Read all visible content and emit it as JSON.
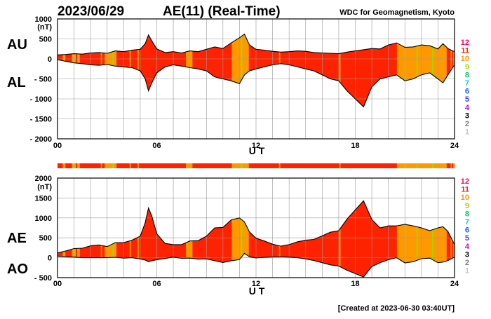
{
  "header": {
    "date": "2023/06/29",
    "title": "AE(11) (Real-Time)",
    "source": "WDC for Geomagnetism, Kyoto"
  },
  "footer": {
    "created": "[Created at 2023-06-30 03:40UT]"
  },
  "colors": {
    "c1": "#c8c8c8",
    "c2": "#808080",
    "c3": "#000000",
    "c4": "#cc00cc",
    "c5": "#4040ff",
    "c6": "#0066ff",
    "c7": "#00cccc",
    "c8": "#00cc66",
    "c9": "#99dd00",
    "c10": "#ff9900",
    "c11": "#ff2200",
    "c12": "#ff0066",
    "grid": "#999999",
    "curve": "#000000"
  },
  "chart_data": [
    {
      "type": "area",
      "id": "au_al",
      "title": "AU / AL",
      "upper_label": "AU",
      "lower_label": "AL",
      "unit": "(nT)",
      "xlabel": "U T",
      "xlim": [
        0,
        24
      ],
      "ylim": [
        -2000,
        1000
      ],
      "y_ticks": [
        1000,
        500,
        0,
        -500,
        -1000,
        -1500,
        -2000
      ],
      "y_tick_labels": [
        "1000",
        "500",
        "0",
        "- 500",
        "- 1000",
        "- 1500",
        "- 2000"
      ],
      "x_ticks": [
        0,
        6,
        12,
        18,
        24
      ],
      "x_tick_labels": [
        "00",
        "06",
        "12",
        "18",
        "24"
      ],
      "x_grid_hours": [
        1,
        2,
        3,
        4,
        5,
        6,
        7,
        8,
        9,
        10,
        11,
        12,
        13,
        14,
        15,
        16,
        17,
        18,
        19,
        20,
        21,
        22,
        23
      ],
      "series": [
        {
          "name": "AU",
          "x": [
            0,
            0.5,
            1,
            1.5,
            2,
            2.5,
            3,
            3.5,
            4,
            4.5,
            5,
            5.3,
            5.5,
            5.7,
            6,
            6.5,
            7,
            7.5,
            8,
            8.5,
            9,
            9.5,
            10,
            10.5,
            11,
            11.3,
            11.6,
            12,
            12.5,
            13,
            13.5,
            14,
            14.5,
            15,
            15.5,
            16,
            16.5,
            17,
            17.5,
            18,
            18.5,
            19,
            19.5,
            20,
            20.5,
            21,
            21.5,
            22,
            22.5,
            23,
            23.3,
            23.6,
            24
          ],
          "values": [
            100,
            110,
            130,
            120,
            150,
            160,
            140,
            200,
            180,
            220,
            240,
            380,
            600,
            450,
            250,
            160,
            180,
            150,
            200,
            180,
            240,
            300,
            260,
            400,
            530,
            620,
            350,
            240,
            220,
            190,
            170,
            180,
            200,
            190,
            160,
            150,
            140,
            130,
            170,
            200,
            230,
            260,
            250,
            350,
            400,
            290,
            300,
            350,
            330,
            250,
            380,
            260,
            180
          ]
        },
        {
          "name": "AL",
          "x": [
            0,
            0.5,
            1,
            1.5,
            2,
            2.5,
            3,
            3.5,
            4,
            4.5,
            5,
            5.3,
            5.5,
            5.7,
            6,
            6.5,
            7,
            7.5,
            8,
            8.5,
            9,
            9.5,
            10,
            10.5,
            11,
            11.3,
            11.6,
            12,
            12.5,
            13,
            13.5,
            14,
            14.5,
            15,
            15.5,
            16,
            16.5,
            17,
            17.5,
            18,
            18.5,
            19,
            19.5,
            20,
            20.5,
            21,
            21.5,
            22,
            22.5,
            23,
            23.3,
            23.6,
            24
          ],
          "values": [
            -20,
            -60,
            -100,
            -120,
            -150,
            -160,
            -140,
            -180,
            -200,
            -220,
            -300,
            -500,
            -800,
            -600,
            -350,
            -200,
            -150,
            -180,
            -220,
            -250,
            -300,
            -450,
            -500,
            -550,
            -620,
            -400,
            -300,
            -250,
            -200,
            -150,
            -120,
            -150,
            -200,
            -250,
            -300,
            -400,
            -500,
            -550,
            -800,
            -1000,
            -1200,
            -700,
            -500,
            -450,
            -400,
            -550,
            -500,
            -400,
            -350,
            -500,
            -600,
            -400,
            -150
          ]
        }
      ],
      "color_bands": [
        11,
        11,
        11,
        11,
        10,
        10,
        11,
        11,
        11,
        11,
        11,
        10,
        9,
        10,
        11,
        10,
        10,
        11,
        11,
        11,
        11,
        11,
        11,
        11,
        11,
        11,
        11,
        11,
        11,
        11,
        11,
        11,
        11,
        10,
        11,
        11,
        10,
        10,
        10,
        10,
        10,
        10,
        9,
        10,
        10,
        11,
        11,
        11,
        11,
        11,
        11,
        11,
        11,
        11,
        11,
        10,
        11,
        11,
        11,
        11,
        11,
        10,
        11,
        11,
        11,
        11,
        11,
        11,
        11,
        11,
        11,
        11,
        11,
        11,
        11,
        11,
        11,
        11,
        11,
        11,
        11,
        11,
        11,
        11,
        11,
        11,
        11,
        11,
        11,
        11,
        11,
        11,
        11,
        11,
        11,
        11,
        11,
        11,
        10,
        10,
        10,
        10,
        10,
        11,
        11,
        11,
        11,
        11,
        11,
        11,
        11,
        11,
        11,
        11,
        11,
        11,
        11,
        11,
        11,
        11,
        11,
        11,
        11,
        11,
        11,
        11,
        11,
        11,
        11,
        11,
        11,
        11,
        11,
        10,
        10,
        10,
        10,
        10,
        10,
        10,
        9,
        10,
        10,
        10,
        10,
        10,
        11,
        11,
        11,
        11,
        11,
        11,
        11,
        11,
        11,
        11,
        11,
        11,
        11,
        11,
        11,
        11,
        11,
        11,
        11,
        11,
        11,
        11,
        11,
        10,
        11,
        11,
        11,
        11,
        11,
        11,
        11,
        11,
        11,
        11,
        11,
        11,
        11,
        11,
        11,
        11,
        11,
        11,
        11,
        11,
        11,
        11,
        11,
        11,
        11,
        11,
        11,
        11,
        11,
        11,
        11,
        11,
        11,
        11,
        11,
        11,
        11,
        11,
        11,
        11,
        11,
        11,
        11,
        11,
        11,
        10,
        11,
        11,
        11,
        11,
        11,
        11,
        11,
        11,
        11,
        11,
        11,
        11,
        11,
        11,
        11,
        11,
        11,
        11,
        11,
        11,
        11,
        11,
        11,
        11,
        11,
        11,
        11,
        11,
        11,
        11,
        11,
        11,
        11,
        11,
        11,
        11,
        11,
        11,
        11,
        11,
        11,
        11,
        11,
        10,
        10,
        10,
        10,
        10,
        10,
        9,
        10,
        10,
        10,
        10,
        10,
        10,
        10,
        10,
        9,
        10,
        10,
        10,
        10,
        10,
        10,
        10,
        10,
        10,
        10,
        10,
        9,
        10,
        10,
        10,
        10,
        10,
        10,
        10,
        10,
        10,
        10,
        11,
        11,
        11,
        10,
        11,
        10
      ]
    },
    {
      "type": "area",
      "id": "ae_ao",
      "title": "AE / AO",
      "upper_label": "AE",
      "lower_label": "AO",
      "unit": "(nT)",
      "xlabel": "U T",
      "xlim": [
        0,
        24
      ],
      "ylim": [
        -500,
        2000
      ],
      "y_ticks": [
        2000,
        1500,
        1000,
        500,
        0,
        -500
      ],
      "y_tick_labels": [
        "2000",
        "1500",
        "1000",
        "500",
        "0",
        "- 500"
      ],
      "x_ticks": [
        0,
        6,
        12,
        18,
        24
      ],
      "x_tick_labels": [
        "00",
        "06",
        "12",
        "18",
        "24"
      ],
      "x_grid_hours": [
        1,
        2,
        3,
        4,
        5,
        6,
        7,
        8,
        9,
        10,
        11,
        12,
        13,
        14,
        15,
        16,
        17,
        18,
        19,
        20,
        21,
        22,
        23
      ],
      "series": [
        {
          "name": "AE",
          "x": [
            0,
            0.5,
            1,
            1.5,
            2,
            2.5,
            3,
            3.5,
            4,
            4.5,
            5,
            5.3,
            5.5,
            5.7,
            6,
            6.5,
            7,
            7.5,
            8,
            8.5,
            9,
            9.5,
            10,
            10.5,
            11,
            11.3,
            11.6,
            12,
            12.5,
            13,
            13.5,
            14,
            14.5,
            15,
            15.5,
            16,
            16.5,
            17,
            17.5,
            18,
            18.5,
            19,
            19.5,
            20,
            20.5,
            21,
            21.5,
            22,
            22.5,
            23,
            23.3,
            23.6,
            24
          ],
          "values": [
            120,
            170,
            230,
            240,
            300,
            320,
            280,
            380,
            380,
            440,
            540,
            880,
            1250,
            1050,
            600,
            360,
            330,
            330,
            420,
            430,
            540,
            750,
            760,
            950,
            1000,
            900,
            650,
            490,
            420,
            340,
            290,
            330,
            400,
            440,
            460,
            550,
            640,
            680,
            970,
            1200,
            1430,
            960,
            750,
            800,
            800,
            840,
            800,
            750,
            680,
            750,
            780,
            660,
            330
          ]
        },
        {
          "name": "AO",
          "x": [
            0,
            0.5,
            1,
            1.5,
            2,
            2.5,
            3,
            3.5,
            4,
            4.5,
            5,
            5.3,
            5.5,
            5.7,
            6,
            6.5,
            7,
            7.5,
            8,
            8.5,
            9,
            9.5,
            10,
            10.5,
            11,
            11.3,
            11.6,
            12,
            12.5,
            13,
            13.5,
            14,
            14.5,
            15,
            15.5,
            16,
            16.5,
            17,
            17.5,
            18,
            18.5,
            19,
            19.5,
            20,
            20.5,
            21,
            21.5,
            22,
            22.5,
            23,
            23.3,
            23.6,
            24
          ],
          "values": [
            40,
            25,
            15,
            0,
            0,
            0,
            0,
            10,
            -10,
            0,
            -30,
            -60,
            -100,
            -75,
            -50,
            -20,
            15,
            -15,
            -10,
            -35,
            -30,
            -75,
            -120,
            -75,
            -45,
            110,
            25,
            -5,
            10,
            20,
            25,
            15,
            0,
            -30,
            -70,
            -125,
            -180,
            -210,
            -315,
            -400,
            -485,
            -220,
            -125,
            -50,
            0,
            -130,
            -100,
            -25,
            -10,
            -125,
            -110,
            -70,
            15
          ]
        }
      ],
      "top_strip": true,
      "color_bands": [
        11,
        11,
        11,
        11,
        10,
        10,
        11,
        11,
        11,
        11,
        11,
        10,
        9,
        10,
        11,
        10,
        10,
        11,
        11,
        11,
        11,
        11,
        11,
        11,
        11,
        11,
        11,
        11,
        11,
        11,
        11,
        11,
        11,
        10,
        11,
        11,
        10,
        10,
        10,
        10,
        10,
        10,
        9,
        10,
        10,
        11,
        11,
        11,
        11,
        11,
        11,
        11,
        11,
        11,
        11,
        10,
        11,
        11,
        11,
        11,
        11,
        10,
        11,
        11,
        11,
        11,
        11,
        11,
        11,
        11,
        11,
        11,
        11,
        11,
        11,
        11,
        11,
        11,
        11,
        11,
        11,
        11,
        11,
        11,
        11,
        11,
        11,
        11,
        11,
        11,
        11,
        11,
        11,
        11,
        11,
        11,
        11,
        11,
        10,
        10,
        10,
        10,
        10,
        11,
        11,
        11,
        11,
        11,
        11,
        11,
        11,
        11,
        11,
        11,
        11,
        11,
        11,
        11,
        11,
        11,
        11,
        11,
        11,
        11,
        11,
        11,
        11,
        11,
        11,
        11,
        11,
        11,
        11,
        10,
        10,
        10,
        10,
        10,
        10,
        10,
        9,
        10,
        10,
        10,
        10,
        10,
        11,
        11,
        11,
        11,
        11,
        11,
        11,
        11,
        11,
        11,
        11,
        11,
        11,
        11,
        11,
        11,
        11,
        11,
        11,
        11,
        11,
        11,
        11,
        10,
        11,
        11,
        11,
        11,
        11,
        11,
        11,
        11,
        11,
        11,
        11,
        11,
        11,
        11,
        11,
        11,
        11,
        11,
        11,
        11,
        11,
        11,
        11,
        11,
        11,
        11,
        11,
        11,
        11,
        11,
        11,
        11,
        11,
        11,
        11,
        11,
        11,
        11,
        11,
        11,
        11,
        11,
        11,
        11,
        11,
        10,
        11,
        11,
        11,
        11,
        11,
        11,
        11,
        11,
        11,
        11,
        11,
        11,
        11,
        11,
        11,
        11,
        11,
        11,
        11,
        11,
        11,
        11,
        11,
        11,
        11,
        11,
        11,
        11,
        11,
        11,
        11,
        11,
        11,
        11,
        11,
        11,
        11,
        11,
        11,
        11,
        11,
        11,
        11,
        10,
        10,
        10,
        10,
        10,
        10,
        9,
        10,
        10,
        10,
        10,
        10,
        10,
        10,
        10,
        9,
        10,
        10,
        10,
        10,
        10,
        10,
        10,
        10,
        10,
        10,
        10,
        9,
        10,
        10,
        10,
        10,
        10,
        10,
        10,
        10,
        10,
        10,
        11,
        11,
        11,
        10,
        11,
        10
      ]
    }
  ],
  "legend": {
    "items": [
      {
        "label": "12",
        "color_key": "c12"
      },
      {
        "label": "11",
        "color_key": "c11"
      },
      {
        "label": "10",
        "color_key": "c10"
      },
      {
        "label": "9",
        "color_key": "c9"
      },
      {
        "label": "8",
        "color_key": "c8"
      },
      {
        "label": "7",
        "color_key": "c7"
      },
      {
        "label": "6",
        "color_key": "c6"
      },
      {
        "label": "5",
        "color_key": "c5"
      },
      {
        "label": "4",
        "color_key": "c4"
      },
      {
        "label": "3",
        "color_key": "c3"
      },
      {
        "label": "2",
        "color_key": "c2"
      },
      {
        "label": "1",
        "color_key": "c1"
      }
    ]
  }
}
